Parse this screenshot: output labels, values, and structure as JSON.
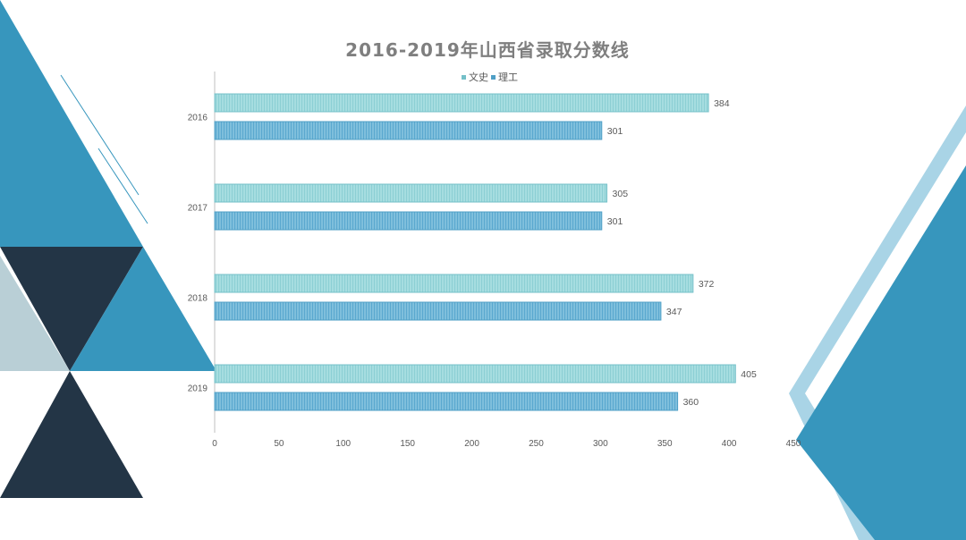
{
  "colors": {
    "teal": "#3796bd",
    "dark_navy": "#233546",
    "light_gray_blue": "#b9cfd6",
    "light_blue": "#a9d4e6",
    "series_wenshi_fill": "#a6dde0",
    "series_wenshi_stroke": "#74c0c8",
    "series_ligong_fill": "#7fbfdc",
    "series_ligong_stroke": "#4f9fc6"
  },
  "chart_data": {
    "type": "bar",
    "orientation": "horizontal",
    "title": "2016-2019年山西省录取分数线",
    "categories": [
      "2016",
      "2017",
      "2018",
      "2019"
    ],
    "series": [
      {
        "name": "文史",
        "values": [
          384,
          305,
          372,
          405
        ]
      },
      {
        "name": "理工",
        "values": [
          301,
          301,
          347,
          360
        ]
      }
    ],
    "xlim": [
      0,
      450
    ],
    "xticks": [
      "0",
      "50",
      "100",
      "150",
      "200",
      "250",
      "300",
      "350",
      "400",
      "450"
    ],
    "legend_position": "top",
    "grid": false,
    "data_labels": true
  }
}
